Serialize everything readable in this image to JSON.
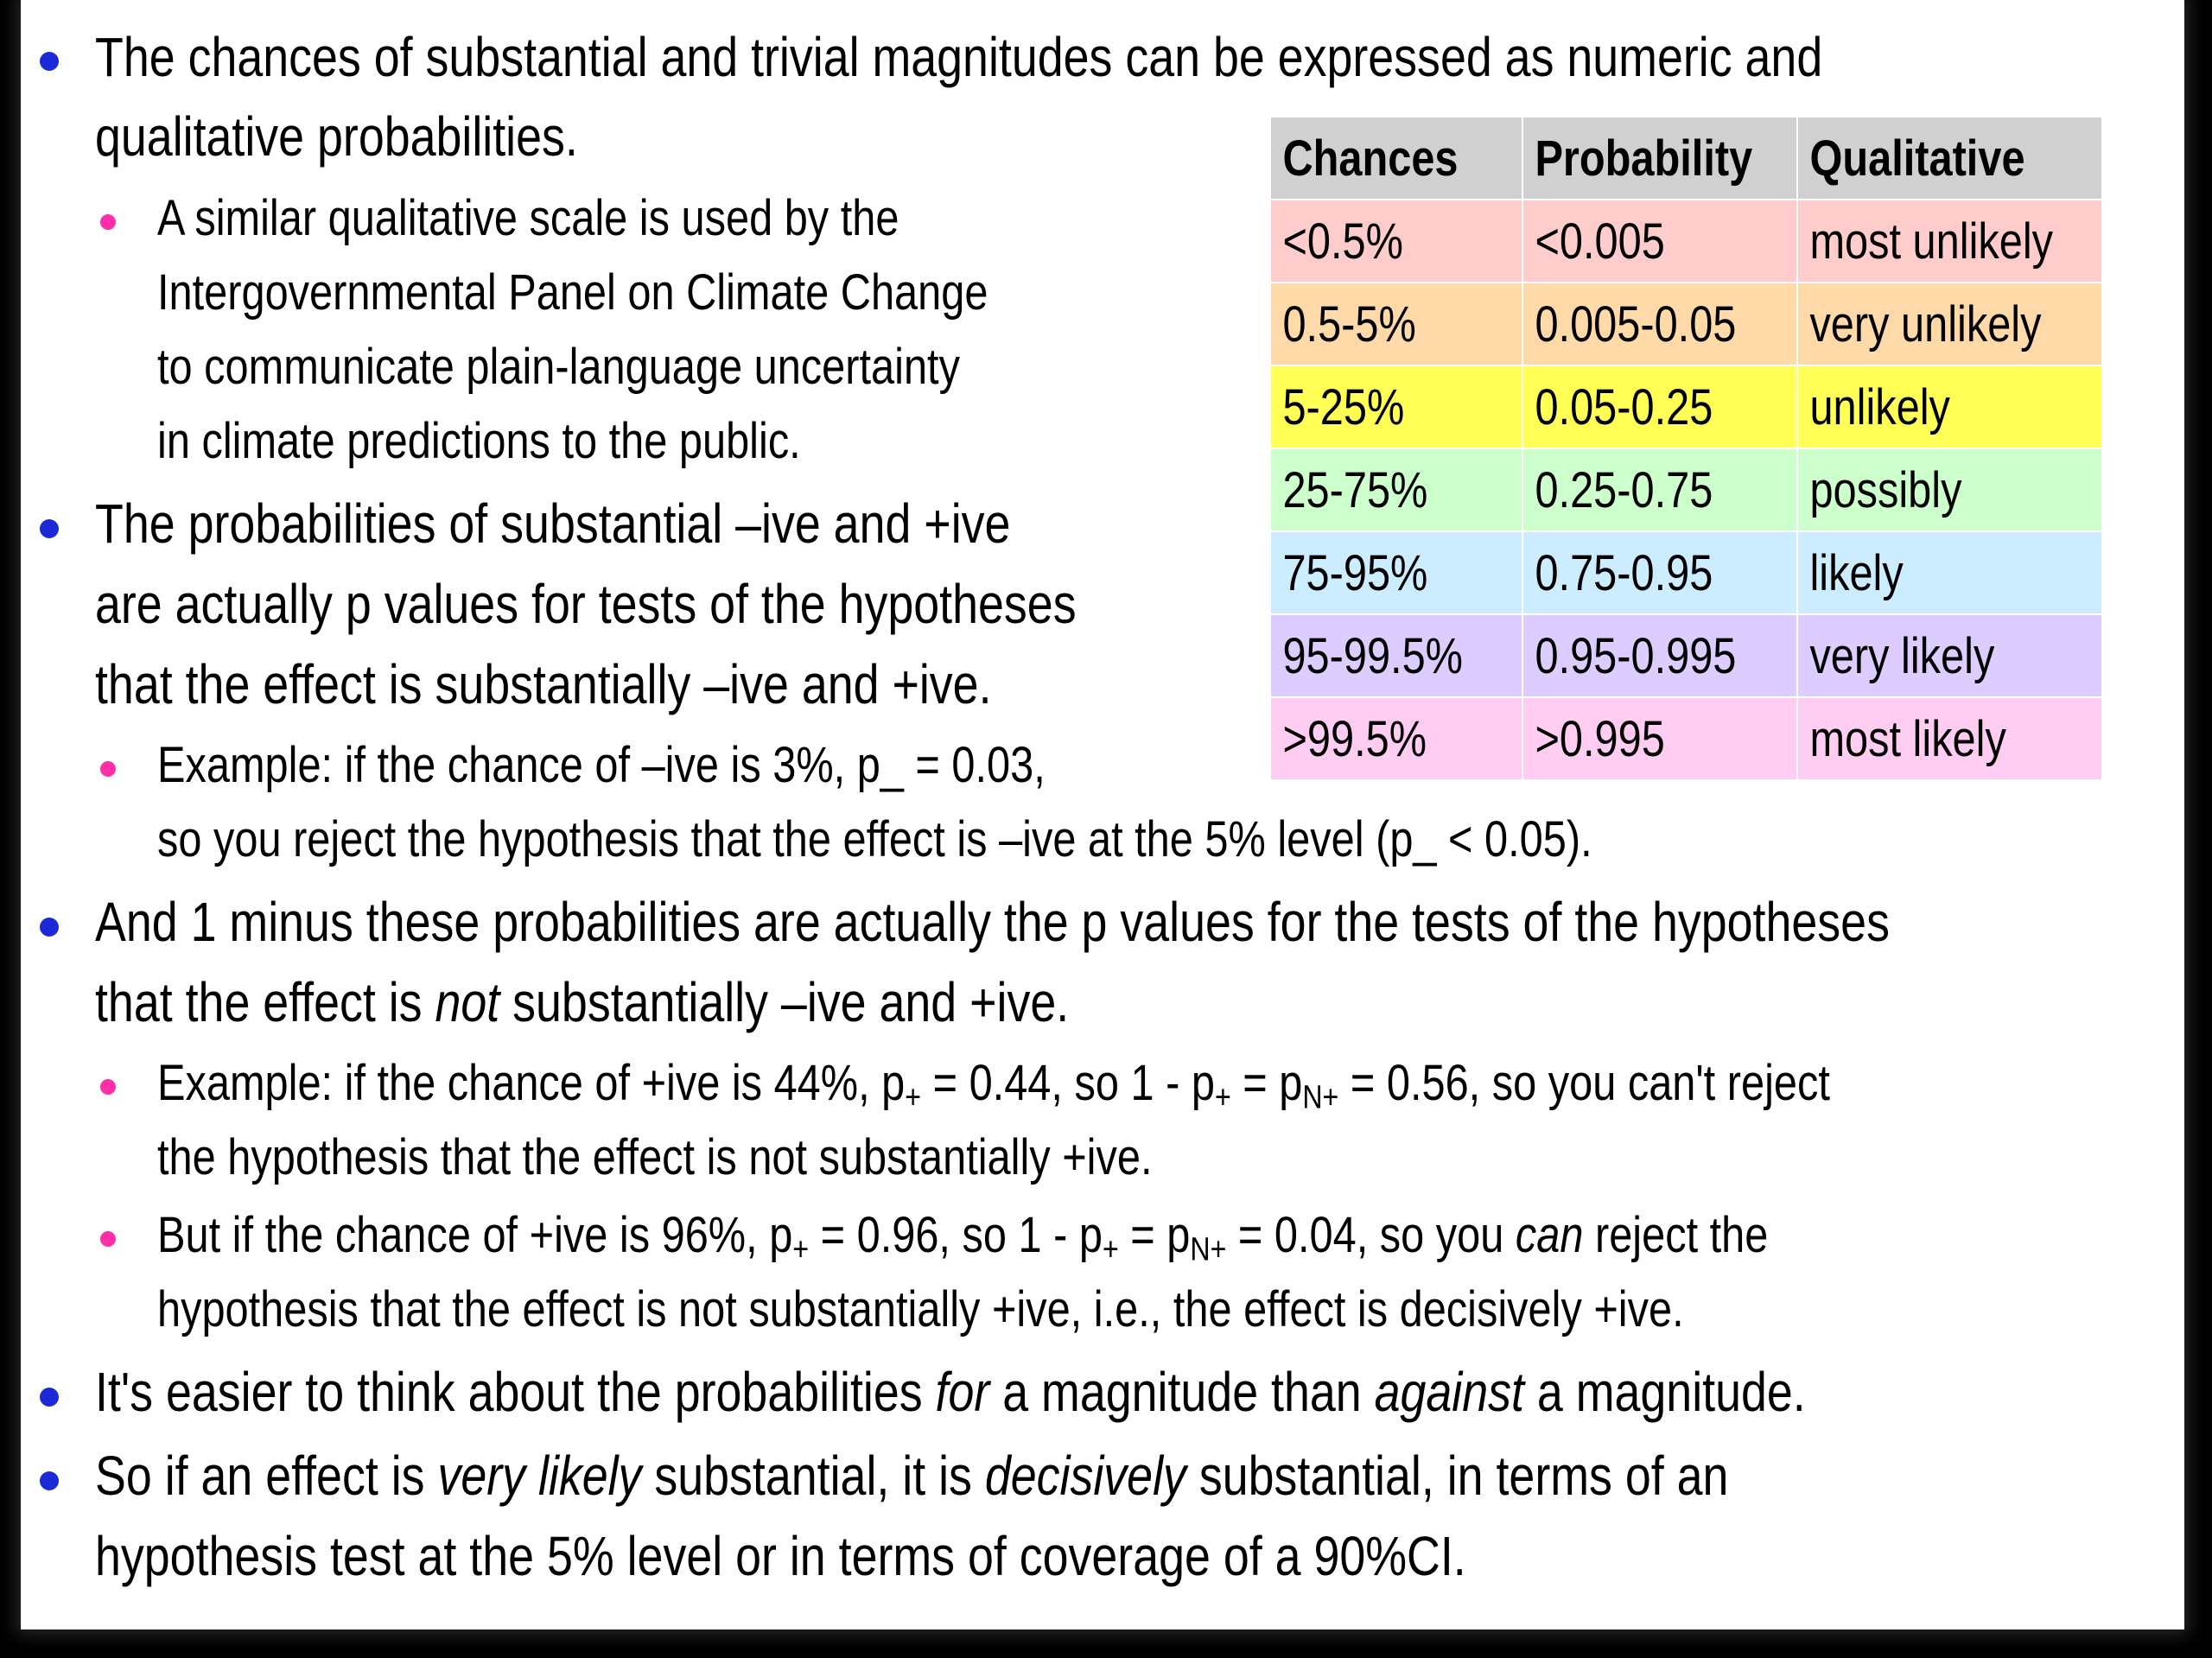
{
  "bullets": {
    "b1": {
      "line1": "The chances of substantial and trivial magnitudes can be expressed as numeric and",
      "line2": "qualitative probabilities."
    },
    "b1a": {
      "line1": "A similar qualitative scale is used by the",
      "line2": "Intergovernmental Panel on Climate Change",
      "line3": "to communicate plain-language uncertainty",
      "line4": "in climate predictions to the public."
    },
    "b2": {
      "line1": "The probabilities of substantial –ive and +ive",
      "line2": "are actually p values for tests of the hypotheses",
      "line3": " that the effect is substantially –ive and +ive."
    },
    "b2a": {
      "line1": "Example: if the chance of –ive is 3%, p_ = 0.03,",
      "line2": "so you reject the hypothesis that the effect is –ive at the 5% level (p_ < 0.05)."
    },
    "b3": {
      "line1": "And 1 minus these probabilities are actually the p values for the tests of the hypotheses",
      "line2_pre": "that the effect is ",
      "line2_em": "not",
      "line2_post": " substantially –ive and +ive."
    },
    "b3a": {
      "l1_t1": "Example: if the chance of +ive is 44%, p",
      "l1_s1": "+",
      "l1_t2": " = 0.44, so 1 - p",
      "l1_s2": "+",
      "l1_t3": " = p",
      "l1_s3": "N+",
      "l1_t4": " = 0.56, so you can't reject",
      "line2": "the hypothesis that the effect is not substantially +ive."
    },
    "b3b": {
      "l1_t1": "But if the chance of +ive is 96%, p",
      "l1_s1": "+",
      "l1_t2": " = 0.96, so 1 - p",
      "l1_s2": "+",
      "l1_t3": " = p",
      "l1_s3": "N+",
      "l1_t4": " = 0.04, so you ",
      "l1_em": "can",
      "l1_t5": " reject the",
      "line2": "hypothesis that the effect is not substantially +ive, i.e., the effect is decisively +ive."
    },
    "b4": {
      "t1": "It's easier to think about the probabilities ",
      "em1": "for",
      "t2": " a magnitude than ",
      "em2": "against",
      "t3": " a magnitude."
    },
    "b5": {
      "t1": "So if an effect is ",
      "em1": "very likely",
      "t2": " substantial, it is ",
      "em2": "decisively",
      "t3": " substantial, in terms of an",
      "line2": "hypothesis test at the 5% level or in terms of coverage of a 90%CI."
    }
  },
  "table": {
    "headers": [
      "Chances",
      "Probability",
      "Qualitative"
    ],
    "header_color": "#d0d0d0",
    "rows": [
      {
        "chances": "<0.5%",
        "probability": "<0.005",
        "qualitative": "most unlikely",
        "color": "#ffcccc"
      },
      {
        "chances": "0.5-5%",
        "probability": "0.005-0.05",
        "qualitative": "very unlikely",
        "color": "#ffd9a8"
      },
      {
        "chances": "5-25%",
        "probability": "0.05-0.25",
        "qualitative": "unlikely",
        "color": "#ffff55"
      },
      {
        "chances": "25-75%",
        "probability": "0.25-0.75",
        "qualitative": "possibly",
        "color": "#ccffcc"
      },
      {
        "chances": "75-95%",
        "probability": "0.75-0.95",
        "qualitative": "likely",
        "color": "#ccecff"
      },
      {
        "chances": "95-99.5%",
        "probability": "0.95-0.995",
        "qualitative": "very likely",
        "color": "#ddccff"
      },
      {
        "chances": ">99.5%",
        "probability": ">0.995",
        "qualitative": "most likely",
        "color": "#ffccf2"
      }
    ]
  },
  "colors": {
    "bullet_level1": "#1a2ad6",
    "bullet_level2": "#ff2fa8"
  }
}
